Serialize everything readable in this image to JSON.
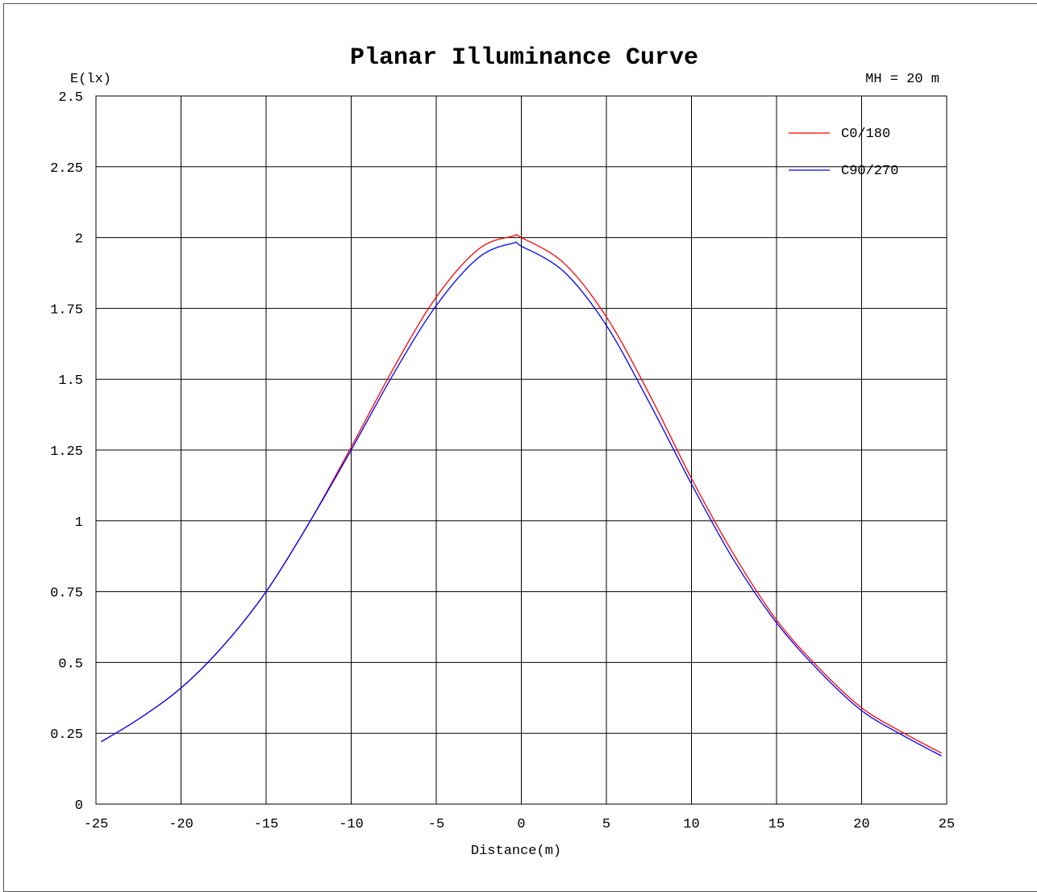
{
  "chart_data": {
    "type": "line",
    "title": "Planar Illuminance Curve",
    "annotation": "MH = 20 m",
    "xlabel": "Distance(m)",
    "ylabel": "E(lx)",
    "xlim": [
      -25,
      25
    ],
    "ylim": [
      0,
      2.5
    ],
    "x_ticks": [
      -25,
      -20,
      -15,
      -10,
      -5,
      0,
      5,
      10,
      15,
      20,
      25
    ],
    "x_tick_labels": [
      "-25",
      "-20",
      "-15",
      "-10",
      "-5",
      "0",
      "5",
      "10",
      "15",
      "20",
      "25"
    ],
    "y_ticks": [
      0,
      0.25,
      0.5,
      0.75,
      1,
      1.25,
      1.5,
      1.75,
      2,
      2.25,
      2.5
    ],
    "y_tick_labels": [
      "0",
      "0.25",
      "0.5",
      "0.75",
      "1",
      "1.25",
      "1.5",
      "1.75",
      "2",
      "2.25",
      "2.5"
    ],
    "grid": true,
    "legend_position": "top-right",
    "x": [
      -24.7,
      -22.5,
      -20,
      -17.5,
      -15,
      -12.5,
      -10,
      -7.5,
      -5,
      -2.5,
      -0.5,
      0,
      2.5,
      5,
      7.5,
      10,
      12.5,
      15,
      17.5,
      20,
      22.5,
      24.7
    ],
    "series": [
      {
        "name": "C0/180",
        "color": "#ff0000",
        "values": [
          0.22,
          0.3,
          0.41,
          0.56,
          0.75,
          0.99,
          1.26,
          1.54,
          1.79,
          1.96,
          2.005,
          2.0,
          1.91,
          1.72,
          1.45,
          1.15,
          0.88,
          0.65,
          0.48,
          0.34,
          0.25,
          0.18
        ]
      },
      {
        "name": "C90/270",
        "color": "#0000ff",
        "values": [
          0.22,
          0.3,
          0.41,
          0.56,
          0.75,
          0.99,
          1.25,
          1.52,
          1.76,
          1.93,
          1.98,
          1.97,
          1.88,
          1.69,
          1.42,
          1.13,
          0.86,
          0.64,
          0.47,
          0.33,
          0.24,
          0.17
        ]
      }
    ]
  }
}
